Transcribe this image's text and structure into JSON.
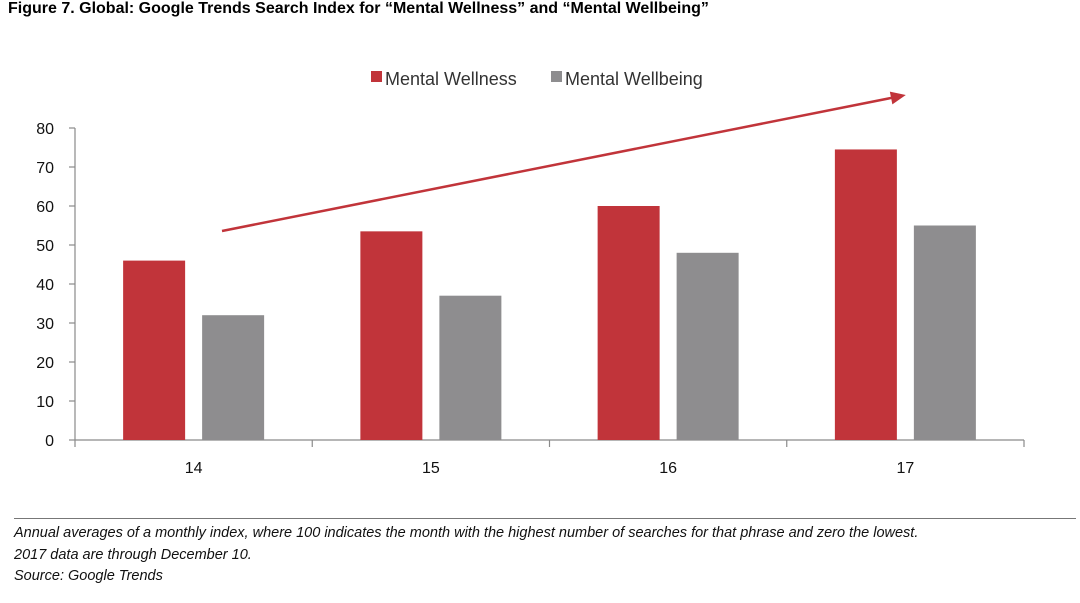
{
  "figure": {
    "title": "Figure 7. Global: Google Trends Search Index for “Mental Wellness” and “Mental Wellbeing”",
    "notes": [
      "Annual averages of a monthly index, where 100 indicates the month with the highest number of searches for that phrase and zero the lowest.",
      "2017 data are through December 10.",
      "Source: Google Trends"
    ]
  },
  "chart_data": {
    "type": "bar",
    "title": "",
    "xlabel": "",
    "ylabel": "",
    "categories": [
      "14",
      "15",
      "16",
      "17"
    ],
    "series": [
      {
        "name": "Mental Wellness",
        "color": "#c1343a",
        "values": [
          46,
          53.5,
          60,
          74.5
        ]
      },
      {
        "name": "Mental Wellbeing",
        "color": "#8e8d8f",
        "values": [
          32,
          37,
          48,
          55
        ]
      }
    ],
    "ylim": [
      0,
      80
    ],
    "yticks": [
      0,
      10,
      20,
      30,
      40,
      50,
      60,
      70,
      80
    ],
    "grid": false,
    "legend_position": "top-center",
    "annotation": {
      "type": "upward-trend-arrow",
      "color": "#c1343a"
    }
  }
}
